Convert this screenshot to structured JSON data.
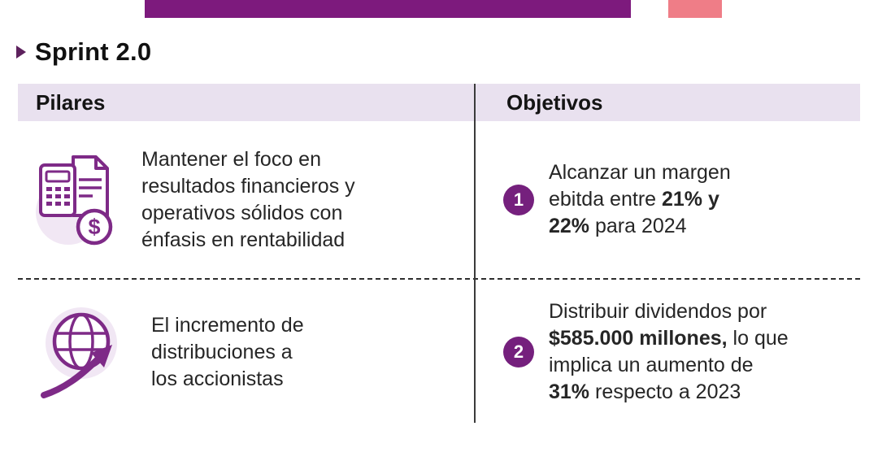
{
  "header": {
    "title": "Sprint 2.0"
  },
  "decor": {
    "top_bar_color": "#7d1a7d",
    "top_square_color": "#ef7d87",
    "header_bg": "#e9e1ef",
    "accent_purple": "#75207d",
    "bullet_color": "#5d215d",
    "icon_stroke": "#7e2a87",
    "icon_bg": "#f1e7f4"
  },
  "table": {
    "columns": {
      "pillars": "Pilares",
      "objectives": "Objetivos"
    },
    "rows": [
      {
        "pillar_icon": "invoice-calculator-dollar-icon",
        "pillar_text": "Mantener el foco en\nresultados financieros y\noperativos sólidos con\nénfasis en rentabilidad",
        "objective_number": "1",
        "objective_segments": [
          {
            "t": "Alcanzar un margen\nebitda entre ",
            "b": false
          },
          {
            "t": "21% y\n22%",
            "b": true
          },
          {
            "t": " para 2024",
            "b": false
          }
        ]
      },
      {
        "pillar_icon": "globe-growth-arrow-icon",
        "pillar_text": "El incremento de\ndistribuciones a\nlos accionistas",
        "objective_number": "2",
        "objective_segments": [
          {
            "t": "Distribuir dividendos por\n",
            "b": false
          },
          {
            "t": "$585.000 millones,",
            "b": true
          },
          {
            "t": " lo que\nimplica un aumento de\n",
            "b": false
          },
          {
            "t": "31%",
            "b": true
          },
          {
            "t": " respecto a 2023",
            "b": false
          }
        ]
      }
    ]
  }
}
